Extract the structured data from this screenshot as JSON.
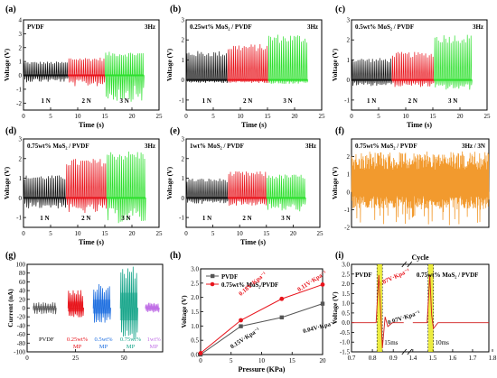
{
  "figure": {
    "colors": {
      "black": "#111111",
      "red": "#e8141c",
      "green": "#2de02d",
      "orange": "#f29a2e",
      "gray": "#555555",
      "darkred": "#d11f1f",
      "highlight": "#e6e600",
      "blue": "#1f6fe0",
      "teal": "#17a58a",
      "violet": "#c070e6"
    }
  },
  "chart_data": [
    {
      "id": "a",
      "type": "line",
      "panel_label": "(a)",
      "title": "PVDF",
      "freq": "3Hz",
      "xlabel": "Time (s)",
      "ylabel": "Voltage (V)",
      "xlim": [
        0,
        25
      ],
      "ylim": [
        -2.5,
        4
      ],
      "xticks": [
        "0",
        "5",
        "10",
        "15",
        "20",
        "25"
      ],
      "yticks": [
        "-2",
        "-1",
        "0",
        "1",
        "2",
        "3",
        "4"
      ],
      "segments": [
        {
          "name": "1 N",
          "color_key": "black",
          "t_start": 0,
          "t_end": 8.2,
          "peak": 1.0,
          "trough": -0.5
        },
        {
          "name": "2 N",
          "color_key": "red",
          "t_start": 8.2,
          "t_end": 15.0,
          "peak": 1.3,
          "trough": -0.8
        },
        {
          "name": "3 N",
          "color_key": "green",
          "t_start": 15.0,
          "t_end": 22.2,
          "peak": 1.7,
          "trough": -1.9
        }
      ]
    },
    {
      "id": "b",
      "type": "line",
      "panel_label": "(b)",
      "title": "0.25wt% MoS₂ / PVDF",
      "freq": "3Hz",
      "xlabel": "Time (s)",
      "ylabel": "Voltage (V)",
      "xlim": [
        0,
        25
      ],
      "ylim": [
        -1.5,
        3
      ],
      "xticks": [
        "0",
        "5",
        "10",
        "15",
        "20",
        "25"
      ],
      "yticks": [
        "-1",
        "0",
        "1",
        "2",
        "3"
      ],
      "segments": [
        {
          "name": "1 N",
          "color_key": "black",
          "t_start": 0,
          "t_end": 7.6,
          "peak": 1.45,
          "trough": -0.15
        },
        {
          "name": "2 N",
          "color_key": "red",
          "t_start": 7.6,
          "t_end": 15.1,
          "peak": 1.8,
          "trough": -0.15
        },
        {
          "name": "3 N",
          "color_key": "green",
          "t_start": 15.1,
          "t_end": 22.4,
          "peak": 2.3,
          "trough": -0.2
        }
      ]
    },
    {
      "id": "c",
      "type": "line",
      "panel_label": "(c)",
      "title": "0.5wt% MoS₂ / PVDF",
      "freq": "3Hz",
      "xlabel": "Time (s)",
      "ylabel": "Voltage (V)",
      "xlim": [
        0,
        25
      ],
      "ylim": [
        -1.5,
        3
      ],
      "xticks": [
        "0",
        "5",
        "10",
        "15",
        "20",
        "25"
      ],
      "yticks": [
        "-1",
        "0",
        "1",
        "2",
        "3"
      ],
      "segments": [
        {
          "name": "1 N",
          "color_key": "black",
          "t_start": 0,
          "t_end": 7.4,
          "peak": 1.1,
          "trough": -0.3
        },
        {
          "name": "2 N",
          "color_key": "red",
          "t_start": 7.4,
          "t_end": 15.2,
          "peak": 1.4,
          "trough": -0.35
        },
        {
          "name": "3 N",
          "color_key": "green",
          "t_start": 15.2,
          "t_end": 22.2,
          "peak": 2.3,
          "trough": -0.5
        }
      ]
    },
    {
      "id": "d",
      "type": "line",
      "panel_label": "(d)",
      "title": "0.75wt% MoS₂ / PVDF",
      "freq": "3Hz",
      "xlabel": "Time (s)",
      "ylabel": "Voltage (V)",
      "xlim": [
        0,
        25
      ],
      "ylim": [
        -1.5,
        3
      ],
      "xticks": [
        "0",
        "5",
        "10",
        "15",
        "20",
        "25"
      ],
      "yticks": [
        "-1",
        "0",
        "1",
        "2",
        "3"
      ],
      "segments": [
        {
          "name": "1 N",
          "color_key": "black",
          "t_start": 0,
          "t_end": 7.8,
          "peak": 1.15,
          "trough": -0.55
        },
        {
          "name": "2 N",
          "color_key": "red",
          "t_start": 7.8,
          "t_end": 15.3,
          "peak": 2.0,
          "trough": -0.8
        },
        {
          "name": "3 N",
          "color_key": "green",
          "t_start": 15.3,
          "t_end": 22.5,
          "peak": 2.4,
          "trough": -1.3
        }
      ]
    },
    {
      "id": "e",
      "type": "line",
      "panel_label": "(e)",
      "title": "1wt% MoS₂ / PVDF",
      "freq": "3Hz",
      "xlabel": "Time (s)",
      "ylabel": "Voltage (V)",
      "xlim": [
        0,
        25
      ],
      "ylim": [
        -1.5,
        3
      ],
      "xticks": [
        "0",
        "5",
        "10",
        "15",
        "20",
        "25"
      ],
      "yticks": [
        "-1",
        "0",
        "1",
        "2",
        "3"
      ],
      "segments": [
        {
          "name": "1 N",
          "color_key": "black",
          "t_start": 0,
          "t_end": 7.8,
          "peak": 1.0,
          "trough": -0.3
        },
        {
          "name": "2 N",
          "color_key": "red",
          "t_start": 7.8,
          "t_end": 15.0,
          "peak": 1.35,
          "trough": -0.4
        },
        {
          "name": "3 N",
          "color_key": "green",
          "t_start": 15.0,
          "t_end": 22.3,
          "peak": 1.2,
          "trough": -0.7
        }
      ]
    },
    {
      "id": "f",
      "type": "line",
      "panel_label": "(f)",
      "title": "0.75wt% MoS₂ / PVDF",
      "freq": "3Hz / 3N",
      "xlabel": "",
      "ylabel": "Voltage (V)",
      "xlim": [
        0,
        1
      ],
      "ylim": [
        -2,
        3
      ],
      "yticks": [
        "-2",
        "-1",
        "0",
        "1",
        "2"
      ],
      "segments": [
        {
          "name": "",
          "color_key": "orange",
          "t_start": 0,
          "t_end": 1,
          "peak": 2.3,
          "trough": -1.9
        }
      ]
    },
    {
      "id": "g",
      "type": "line",
      "panel_label": "(g)",
      "title": "",
      "xlabel": "",
      "ylabel": "Current (nA)",
      "xlim": [
        0,
        70
      ],
      "ylim": [
        -100,
        100
      ],
      "xticks": [
        "0",
        "25",
        "50"
      ],
      "yticks": [
        "-100",
        "-80",
        "-60",
        "-40",
        "-20",
        "0",
        "20",
        "40",
        "60",
        "80",
        "100"
      ],
      "groups": [
        {
          "name": "PVDF",
          "color_key": "gray",
          "x_start": 3,
          "x_end": 15,
          "amp_pos": 14,
          "amp_neg": -15
        },
        {
          "name": "0.25wt% MP",
          "color_key": "red",
          "x_start": 21,
          "x_end": 29,
          "amp_pos": 42,
          "amp_neg": -22
        },
        {
          "name": "0.5wt% MP",
          "color_key": "blue",
          "x_start": 34,
          "x_end": 43,
          "amp_pos": 55,
          "amp_neg": -35
        },
        {
          "name": "0.75wt% MP",
          "color_key": "teal",
          "x_start": 48,
          "x_end": 57,
          "amp_pos": 100,
          "amp_neg": -80
        },
        {
          "name": "1wt% MP",
          "color_key": "violet",
          "x_start": 61,
          "x_end": 68,
          "amp_pos": 12,
          "amp_neg": -10
        }
      ]
    },
    {
      "id": "h",
      "type": "line",
      "panel_label": "(h)",
      "title": "",
      "xlabel": "Pressure (KPa)",
      "ylabel": "Voltage (V)",
      "xlim": [
        0,
        20
      ],
      "ylim": [
        0,
        3.0
      ],
      "xticks": [
        "0",
        "5",
        "10",
        "15",
        "20"
      ],
      "yticks": [
        "0.0",
        "0.5",
        "1.0",
        "1.5",
        "2.0",
        "2.5",
        "3.0"
      ],
      "legend_placement": "top-left",
      "series": [
        {
          "name": "PVDF",
          "color_key": "gray",
          "marker": "square",
          "x": [
            0,
            6.6,
            13.3,
            20
          ],
          "y": [
            0.0,
            0.99,
            1.3,
            1.78
          ]
        },
        {
          "name": "0.75wt% MoS₂/PVDF",
          "color_key": "red",
          "marker": "circle",
          "x": [
            0,
            6.6,
            13.3,
            20
          ],
          "y": [
            0.05,
            1.2,
            1.95,
            2.45
          ]
        }
      ],
      "annotations": [
        {
          "text": "0.18V·Kpa⁻¹",
          "color_key": "red"
        },
        {
          "text": "0.11V·Kpa⁻¹",
          "color_key": "red"
        },
        {
          "text": "0.07V·Kpa⁻¹",
          "color_key": "red"
        },
        {
          "text": "0.15V·Kpa⁻¹",
          "color_key": "black"
        },
        {
          "text": "0.04V·Kpa⁻¹",
          "color_key": "black"
        },
        {
          "text": "0.07V·Kpa⁻¹",
          "color_key": "black"
        }
      ]
    },
    {
      "id": "i",
      "type": "line",
      "panel_label": "(i)",
      "title": "Cycle",
      "xlabel": "",
      "ylabel": "Voltage (V)",
      "xlim": [
        0.7,
        1.8
      ],
      "ylim": [
        -1.5,
        3
      ],
      "xticks": [
        "0.7",
        "0.8",
        "0.9",
        "1.4",
        "1.5",
        "1.6",
        "1.7",
        "1.8"
      ],
      "yticks": [
        "-1.5",
        "-1.0",
        "-0.5",
        "0.0",
        "0.5",
        "1.0",
        "1.5",
        "2.0",
        "2.5",
        "3.0"
      ],
      "labels": {
        "left": "PVDF",
        "right": "0.75wt% MoS₂ / PVDF"
      },
      "response_times": [
        "15ms",
        "10ms"
      ],
      "pulses": [
        {
          "x": 0.835,
          "peak": 2.45,
          "trough": -1.3
        },
        {
          "x": 1.49,
          "peak": 2.45,
          "trough": -0.3
        }
      ]
    }
  ]
}
